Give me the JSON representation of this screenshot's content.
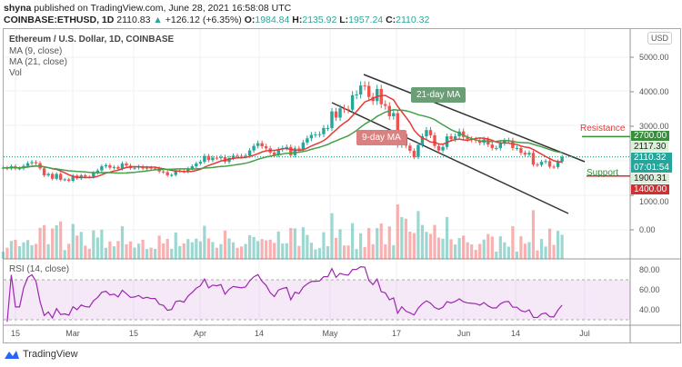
{
  "header": {
    "publisher": "shyna",
    "published_text": "published on TradingView.com, June 28, 2021 16:58:08 UTC",
    "symbol": "COINBASE:ETHUSD, 1D",
    "last": "2110.83",
    "change": "+126.12 (+6.35%)",
    "o_label": "O:",
    "o": "1984.84",
    "h_label": "H:",
    "h": "2135.92",
    "l_label": "L:",
    "l": "1957.24",
    "c_label": "C:",
    "c": "2110.32"
  },
  "legend": {
    "title": "Ethereum / U.S. Dollar, 1D, COINBASE",
    "ma9": "MA (9, close)",
    "ma21": "MA (21, close)",
    "vol": "Vol",
    "rsi": "RSI (14, close)"
  },
  "currency_button": "USD",
  "annotations": {
    "ma21_label": "21-day MA",
    "ma9_label": "9-day MA",
    "resistance": "Resistance",
    "support": "Support"
  },
  "price_tags": {
    "resistance": "2700.00",
    "high_line": "2117.30",
    "last": "2110.32",
    "countdown": "07:01:54",
    "low_line": "1900.31",
    "support": "1400.00"
  },
  "colors": {
    "up": "#26a69a",
    "down": "#ef5350",
    "ma9": "#e53935",
    "ma21": "#43a047",
    "rsi": "#9c27b0",
    "resistance": "#388e3c",
    "support": "#d32f2f"
  },
  "footer": {
    "brand": "TradingView"
  },
  "chart_data": {
    "type": "candlestick",
    "start_date": "2021-02-12",
    "price_axis_ticks": [
      "5000.00",
      "4000.00",
      "3000.00",
      "1000.00",
      "0.00"
    ],
    "rsi_axis_ticks": [
      "80.00",
      "60.00",
      "40.00"
    ],
    "time_ticks": [
      "15",
      "Mar",
      "15",
      "Apr",
      "14",
      "May",
      "17",
      "Jun",
      "14",
      "Jul"
    ],
    "closes": [
      1800,
      1780,
      1840,
      1780,
      1780,
      1850,
      1930,
      1960,
      1930,
      1780,
      1580,
      1620,
      1480,
      1620,
      1450,
      1460,
      1420,
      1570,
      1490,
      1580,
      1540,
      1530,
      1650,
      1720,
      1840,
      1870,
      1800,
      1820,
      1770,
      1920,
      1860,
      1790,
      1800,
      1830,
      1780,
      1800,
      1780,
      1780,
      1690,
      1670,
      1580,
      1590,
      1700,
      1710,
      1690,
      1780,
      1840,
      1920,
      1970,
      2140,
      2020,
      2090,
      2080,
      2110,
      1970,
      2080,
      2150,
      2140,
      2130,
      2150,
      2300,
      2430,
      2510,
      2420,
      2360,
      2240,
      2170,
      2330,
      2370,
      2400,
      2160,
      2360,
      2330,
      2530,
      2650,
      2750,
      2760,
      2770,
      2950,
      2950,
      3430,
      3250,
      3520,
      3490,
      3480,
      3900,
      3920,
      4180,
      4170,
      3850,
      3730,
      4080,
      3640,
      3590,
      3290,
      3380,
      2450,
      2780,
      2440,
      2290,
      2110,
      2460,
      2710,
      2890,
      2740,
      2430,
      2300,
      2400,
      2710,
      2630,
      2710,
      2850,
      2690,
      2630,
      2610,
      2590,
      2520,
      2620,
      2470,
      2370,
      2370,
      2510,
      2580,
      2590,
      2370,
      2370,
      2230,
      2180,
      2230,
      1890,
      1880,
      1970,
      1990,
      1830,
      1820,
      1980,
      2110
    ],
    "resistance": 2700,
    "support": 1400,
    "rsi_band": [
      30,
      70
    ]
  }
}
